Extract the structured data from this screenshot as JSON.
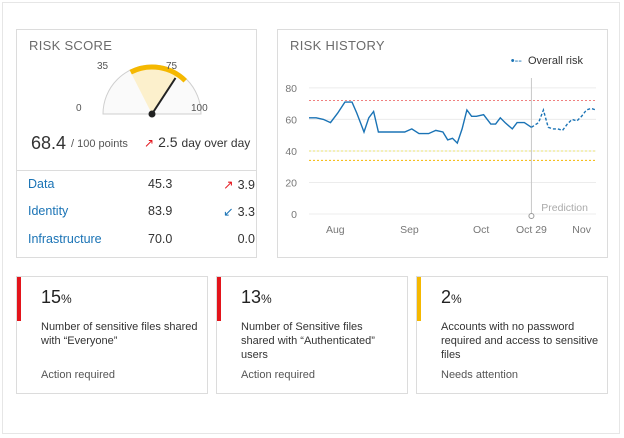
{
  "risk_score": {
    "title": "RISK SCORE",
    "gauge": {
      "min_label": "0",
      "low_label": "35",
      "high_label": "75",
      "max_label": "100",
      "min": 0,
      "max": 100,
      "band_low": 35,
      "band_high": 75,
      "value": 68.4,
      "band_color": "#f5b800",
      "needle_color": "#222222"
    },
    "score": "68.4",
    "score_unit": "/ 100 points",
    "delta_arrow": "↗",
    "delta_value": "2.5",
    "delta_text": "day over day",
    "categories": [
      {
        "name": "Data",
        "value": "45.3",
        "arrow": "↗",
        "arrow_color": "#e3141b",
        "delta": "3.9"
      },
      {
        "name": "Identity",
        "value": "83.9",
        "arrow": "↙",
        "arrow_color": "#1a73b5",
        "delta": "3.3"
      },
      {
        "name": "Infrastructure",
        "value": "70.0",
        "arrow": "",
        "arrow_color": "#333333",
        "delta": "0.0"
      }
    ]
  },
  "risk_history": {
    "title": "RISK HISTORY",
    "legend_label": "Overall risk",
    "prediction_label": "Prediction"
  },
  "chart_data": {
    "type": "line",
    "title": "RISK HISTORY",
    "x_tick_labels": [
      "Aug",
      "Sep",
      "Oct",
      "Oct 29",
      "Nov"
    ],
    "y_tick_labels": [
      "0",
      "20",
      "40",
      "60",
      "80"
    ],
    "ylim": [
      0,
      85
    ],
    "grid": true,
    "legend_position": "top-right",
    "series_color": "#1a73b5",
    "threshold_lines": [
      {
        "value": 72,
        "color": "#f08080"
      },
      {
        "value": 40,
        "color": "#e8e070"
      },
      {
        "value": 34,
        "color": "#f5b800"
      }
    ],
    "series": [
      {
        "name": "Overall risk",
        "x": [
          "Jul 28",
          "Jul 31",
          "Aug 3",
          "Aug 6",
          "Aug 9",
          "Aug 12",
          "Aug 15",
          "Aug 17",
          "Aug 20",
          "Aug 22",
          "Aug 24",
          "Aug 26",
          "Aug 28",
          "Aug 31",
          "Sep 3",
          "Sep 6",
          "Sep 9",
          "Sep 12",
          "Sep 14",
          "Sep 16",
          "Sep 19",
          "Sep 22",
          "Sep 24",
          "Sep 26",
          "Sep 28",
          "Sep 30",
          "Oct 2",
          "Oct 4",
          "Oct 6",
          "Oct 9",
          "Oct 12",
          "Oct 14",
          "Oct 16",
          "Oct 18",
          "Oct 21",
          "Oct 23",
          "Oct 26",
          "Oct 29"
        ],
        "values": [
          61,
          61,
          60,
          58,
          64,
          71,
          71,
          64,
          52,
          61,
          65,
          52,
          52,
          52,
          52,
          52,
          54,
          51,
          51,
          51,
          53,
          52,
          47,
          48,
          45,
          54,
          66,
          62,
          62,
          63,
          57,
          57,
          61,
          58,
          54,
          58,
          58,
          55
        ]
      },
      {
        "name": "Prediction",
        "x": [
          "Oct 29",
          "Nov 1",
          "Nov 3",
          "Nov 5",
          "Nov 7",
          "Nov 9",
          "Nov 11",
          "Nov 13",
          "Nov 15",
          "Nov 17",
          "Nov 19",
          "Nov 21",
          "Nov 23",
          "Nov 25"
        ],
        "values": [
          55,
          58,
          66,
          55,
          54,
          54,
          53,
          57,
          60,
          59,
          62,
          66,
          67,
          66
        ]
      }
    ]
  },
  "stat_cards": [
    {
      "percent": "15",
      "percent_sign": "%",
      "description": "Number of sensitive files shared with “Everyone”",
      "status": "Action required",
      "accent": "#e3141b"
    },
    {
      "percent": "13",
      "percent_sign": "%",
      "description": "Number of Sensitive files shared  with “Authenticated” users",
      "status": "Action required",
      "accent": "#e3141b"
    },
    {
      "percent": "2",
      "percent_sign": "%",
      "description": "Accounts with no password required and access to sensitive files",
      "status": "Needs attention",
      "accent": "#f5b800"
    }
  ]
}
